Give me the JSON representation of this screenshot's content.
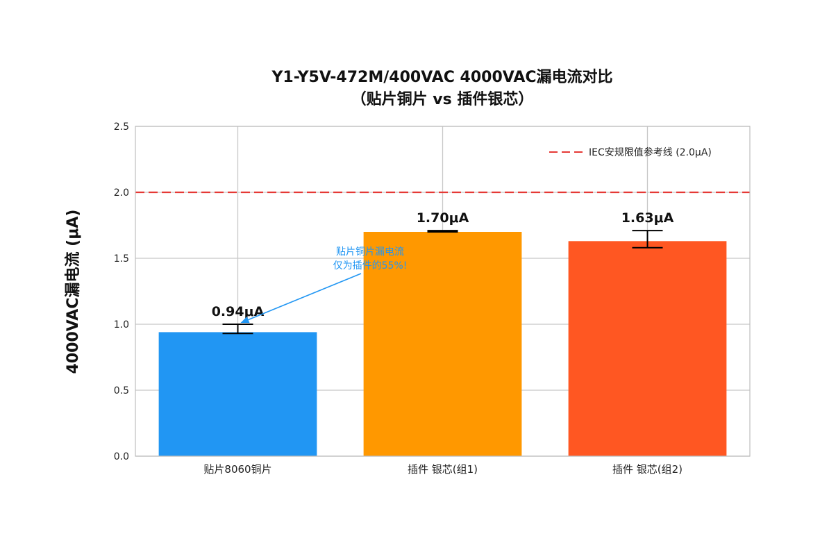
{
  "chart_data": {
    "type": "bar",
    "title": [
      "Y1-Y5V-472M/400VAC 4000VAC漏电流对比",
      "（贴片铜片 vs 插件银芯）"
    ],
    "xlabel": "",
    "ylabel": "4000VAC漏电流 (μA)",
    "ylim": [
      0,
      2.5
    ],
    "yticks": [
      "0.0",
      "0.5",
      "1.0",
      "1.5",
      "2.0",
      "2.5"
    ],
    "grid": true,
    "categories": [
      "贴片8060铜片",
      "插件 银芯(组1)",
      "插件 银芯(组2)"
    ],
    "values": [
      0.94,
      1.7,
      1.63
    ],
    "error_bars": [
      [
        0.93,
        1.0
      ],
      [
        1.7,
        1.71
      ],
      [
        1.58,
        1.71
      ]
    ],
    "data_labels": [
      "0.94μA",
      "1.70μA",
      "1.63μA"
    ],
    "colors": [
      "#2196F3",
      "#FF9800",
      "#FF5722"
    ],
    "reference_line": {
      "value": 2.0,
      "color": "#E53935",
      "label": "IEC安规限值参考线 (2.0μA)"
    },
    "legend_position": "top-right",
    "annotation": {
      "lines": [
        "贴片铜片漏电流",
        "仅为插件的55%!"
      ],
      "color": "#2196F3",
      "target_category": 0
    }
  }
}
